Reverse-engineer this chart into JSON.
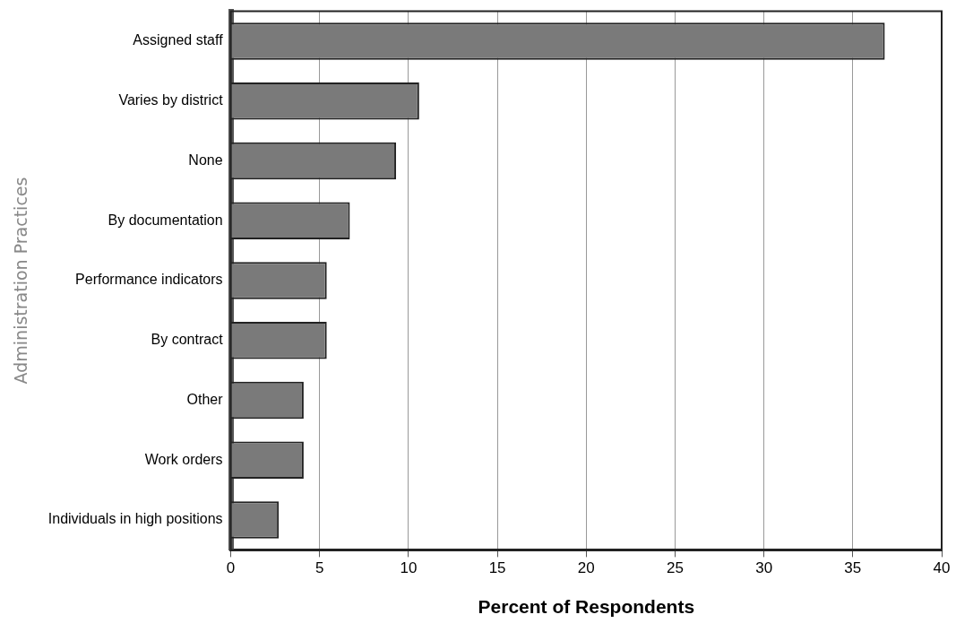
{
  "chart_data": {
    "type": "bar",
    "orientation": "horizontal",
    "xlabel": "Percent of Respondents",
    "ylabel": "Administration Practices",
    "categories": [
      "Assigned staff",
      "Varies by district",
      "None",
      "By documentation",
      "Performance indicators",
      "By contract",
      "Other",
      "Work orders",
      "Individuals in high positions"
    ],
    "values": [
      36.8,
      10.6,
      9.3,
      6.7,
      5.4,
      5.4,
      4.1,
      4.1,
      2.7
    ],
    "color": "#7a7a7a",
    "xlim": [
      0,
      40
    ],
    "xticks": [
      0,
      5,
      10,
      15,
      20,
      25,
      30,
      35,
      40
    ],
    "grid": "x",
    "legend": false
  }
}
